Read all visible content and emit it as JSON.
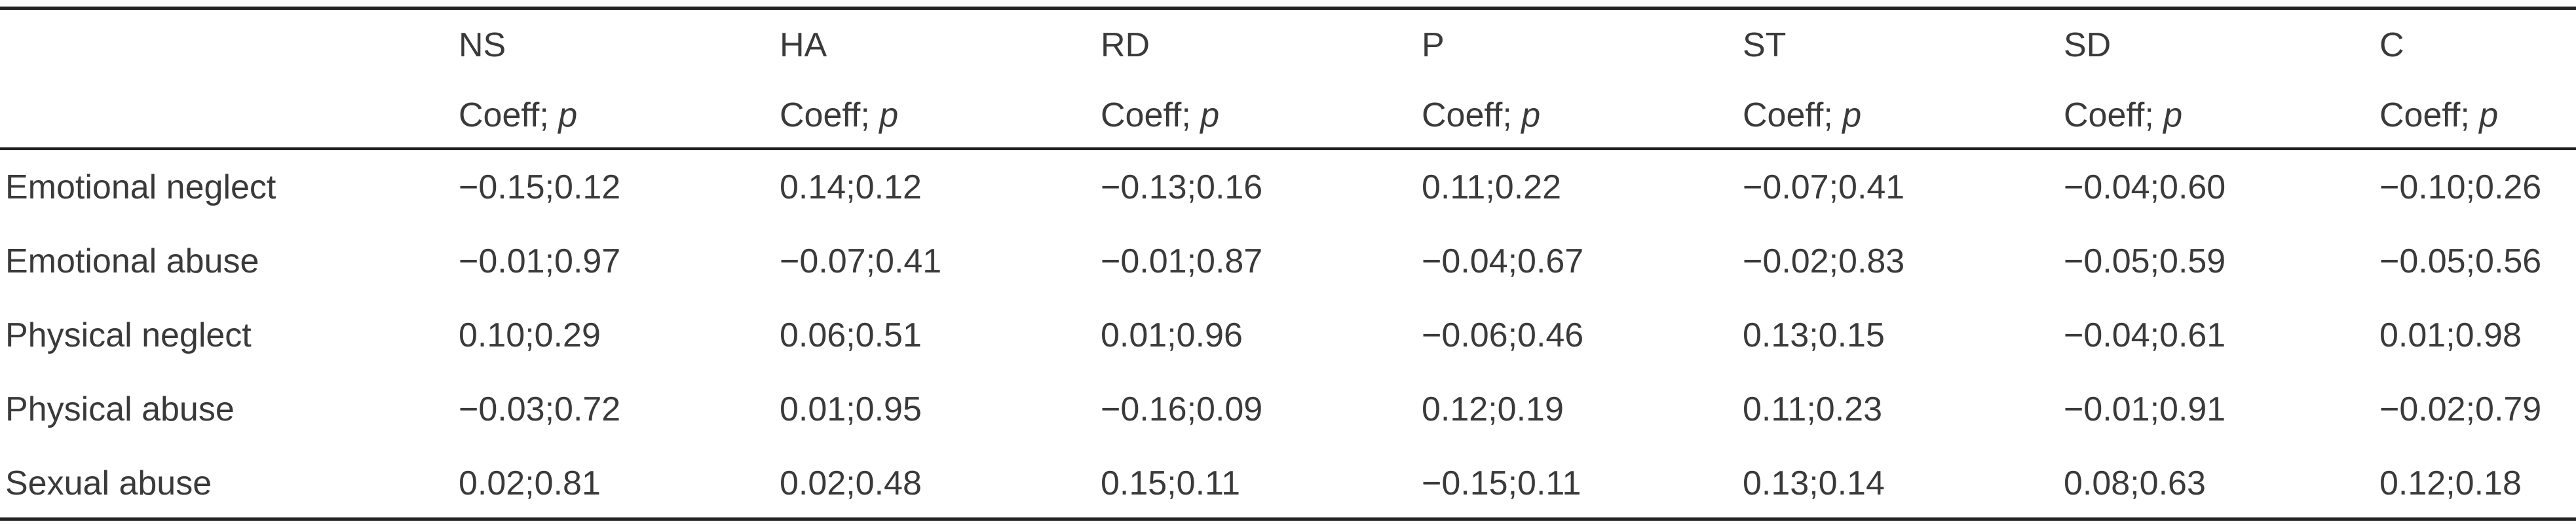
{
  "table": {
    "columns": [
      "NS",
      "HA",
      "RD",
      "P",
      "ST",
      "SD",
      "C"
    ],
    "subheader_label": "Coeff;",
    "subheader_p": "p",
    "rows": [
      {
        "label": "Emotional neglect",
        "values": [
          "−0.15;0.12",
          "0.14;0.12",
          "−0.13;0.16",
          "0.11;0.22",
          "−0.07;0.41",
          "−0.04;0.60",
          "−0.10;0.26"
        ]
      },
      {
        "label": "Emotional abuse",
        "values": [
          "−0.01;0.97",
          "−0.07;0.41",
          "−0.01;0.87",
          "−0.04;0.67",
          "−0.02;0.83",
          "−0.05;0.59",
          "−0.05;0.56"
        ]
      },
      {
        "label": "Physical neglect",
        "values": [
          "0.10;0.29",
          "0.06;0.51",
          "0.01;0.96",
          "−0.06;0.46",
          "0.13;0.15",
          "−0.04;0.61",
          "0.01;0.98"
        ]
      },
      {
        "label": "Physical abuse",
        "values": [
          "−0.03;0.72",
          "0.01;0.95",
          "−0.16;0.09",
          "0.12;0.19",
          "0.11;0.23",
          "−0.01;0.91",
          "−0.02;0.79"
        ]
      },
      {
        "label": "Sexual abuse",
        "values": [
          "0.02;0.81",
          "0.02;0.48",
          "0.15;0.11",
          "−0.15;0.11",
          "0.13;0.14",
          "0.08;0.63",
          "0.12;0.18"
        ]
      }
    ]
  }
}
